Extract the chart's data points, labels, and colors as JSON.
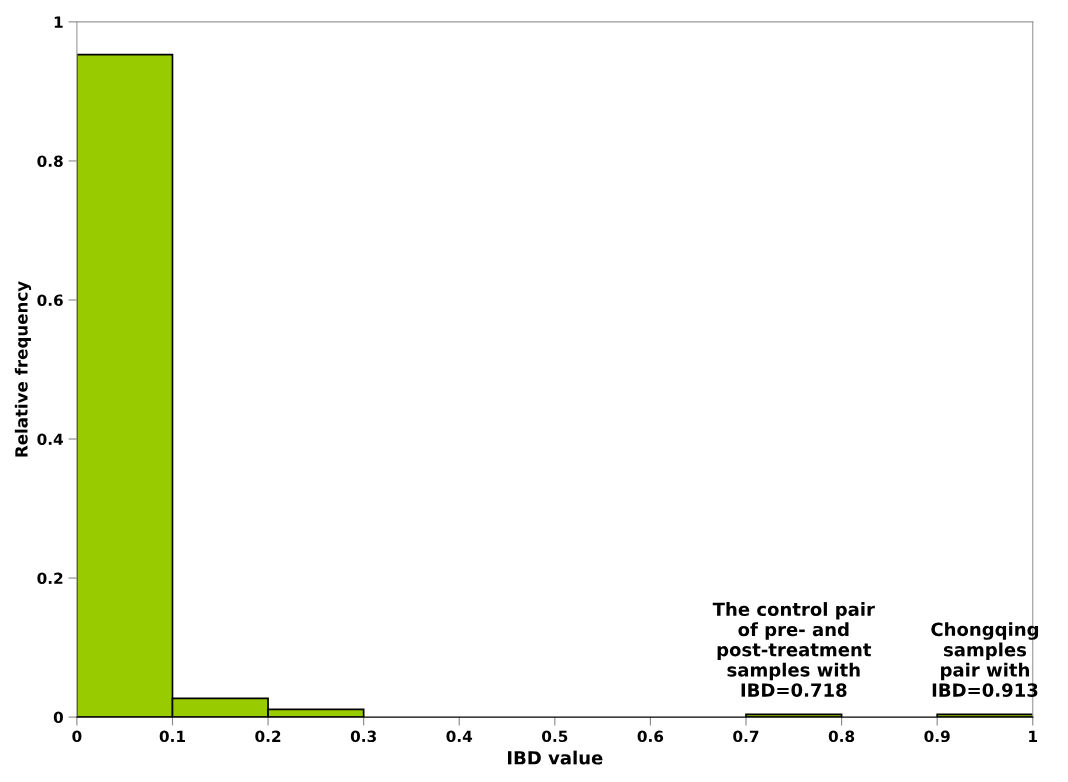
{
  "chart_data": {
    "type": "histogram",
    "xlabel": "IBD value",
    "ylabel": "Relative frequency",
    "bins": [
      0,
      0.1,
      0.2,
      0.3,
      0.4,
      0.5,
      0.6,
      0.7,
      0.8,
      0.9,
      1
    ],
    "values": [
      0.953,
      0.027,
      0.011,
      0,
      0,
      0,
      0,
      0.004,
      0,
      0.004
    ],
    "color": "#99cc00",
    "xlim": [
      0,
      1
    ],
    "xticks": [
      0,
      0.1,
      0.2,
      0.3,
      0.4,
      0.5,
      0.6,
      0.7,
      0.8,
      0.9,
      1
    ],
    "ylim": [
      0,
      1
    ],
    "yticks": [
      0,
      0.2,
      0.4,
      0.6,
      0.8,
      1
    ],
    "grid": false,
    "annotations": [
      {
        "text": "The control pair\nof pre- and\npost-treatment\nsamples with\nIBD=0.718",
        "x": 0.75,
        "y": 0.004
      },
      {
        "text": "Chongqing\nsamples\npair with\nIBD=0.913",
        "x": 0.95,
        "y": 0.004
      }
    ]
  }
}
